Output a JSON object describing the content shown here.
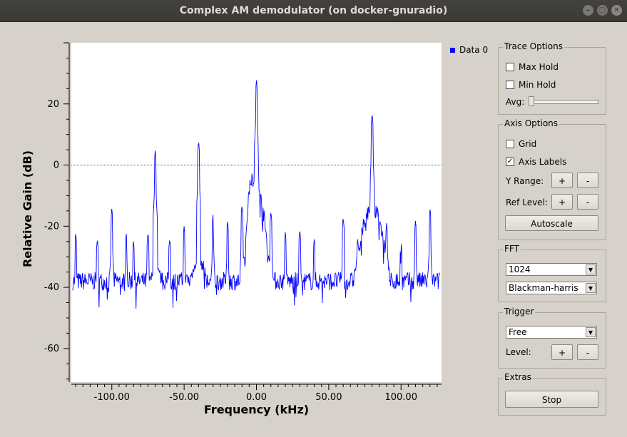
{
  "window": {
    "title": "Complex AM demodulator (on docker-gnuradio)"
  },
  "chart_data": {
    "type": "line",
    "xlabel": "Frequency (kHz)",
    "ylabel": "Relative Gain (dB)",
    "xlim": [
      -128,
      128
    ],
    "ylim": [
      -71,
      40
    ],
    "xticks": [
      -100,
      -50,
      0,
      50,
      100
    ],
    "xtick_labels": [
      "-100.00",
      "-50.00",
      "0.00",
      "50.00",
      "100.00"
    ],
    "yticks": [
      20,
      0,
      -20,
      -40,
      -60
    ],
    "ytick_labels": [
      "20",
      "0",
      "-20",
      "-40",
      "-60"
    ],
    "ref_level": 0,
    "grid": false,
    "legend_position": "top-right, outside plot",
    "series": [
      {
        "name": "Data 0",
        "color": "#0000ff",
        "noise_floor_db": -38,
        "peaks_db": [
          {
            "x": -125,
            "y": -22
          },
          {
            "x": -110,
            "y": -24
          },
          {
            "x": -100,
            "y": -14
          },
          {
            "x": -90,
            "y": -22
          },
          {
            "x": -85,
            "y": -25
          },
          {
            "x": -75,
            "y": -22
          },
          {
            "x": -70,
            "y": 5
          },
          {
            "x": -60,
            "y": -24
          },
          {
            "x": -50,
            "y": -20
          },
          {
            "x": -40,
            "y": 8
          },
          {
            "x": -30,
            "y": -16
          },
          {
            "x": -20,
            "y": -18
          },
          {
            "x": -10,
            "y": -13
          },
          {
            "x": 0,
            "y": 28
          },
          {
            "x": 10,
            "y": -15
          },
          {
            "x": 20,
            "y": -22
          },
          {
            "x": 30,
            "y": -21
          },
          {
            "x": 40,
            "y": -24
          },
          {
            "x": 60,
            "y": -17
          },
          {
            "x": 70,
            "y": -24
          },
          {
            "x": 80,
            "y": 17
          },
          {
            "x": 90,
            "y": -19
          },
          {
            "x": 100,
            "y": -25
          },
          {
            "x": 110,
            "y": -18
          },
          {
            "x": 120,
            "y": -14
          },
          {
            "x": 127,
            "y": -35
          }
        ]
      }
    ]
  },
  "panel": {
    "trace": {
      "title": "Trace Options",
      "max_hold": "Max Hold",
      "max_hold_checked": false,
      "min_hold": "Min Hold",
      "min_hold_checked": false,
      "avg": "Avg:",
      "avg_level": 0
    },
    "axis": {
      "title": "Axis Options",
      "grid": "Grid",
      "grid_checked": false,
      "axis_labels": "Axis Labels",
      "axis_labels_checked": true,
      "checkmark": "✓",
      "y_range": "Y Range:",
      "ref_level": "Ref Level:",
      "plus": "+",
      "minus": "-",
      "autoscale": "Autoscale"
    },
    "fft": {
      "title": "FFT",
      "size": "1024",
      "window": "Blackman-harris"
    },
    "trigger": {
      "title": "Trigger",
      "mode": "Free",
      "level": "Level:",
      "plus": "+",
      "minus": "-"
    },
    "extras": {
      "title": "Extras",
      "stop": "Stop"
    }
  },
  "icons": {
    "minimize": "minimize-icon",
    "maximize": "maximize-icon",
    "close": "close-icon",
    "dropdown": "dropdown-arrow-icon"
  }
}
